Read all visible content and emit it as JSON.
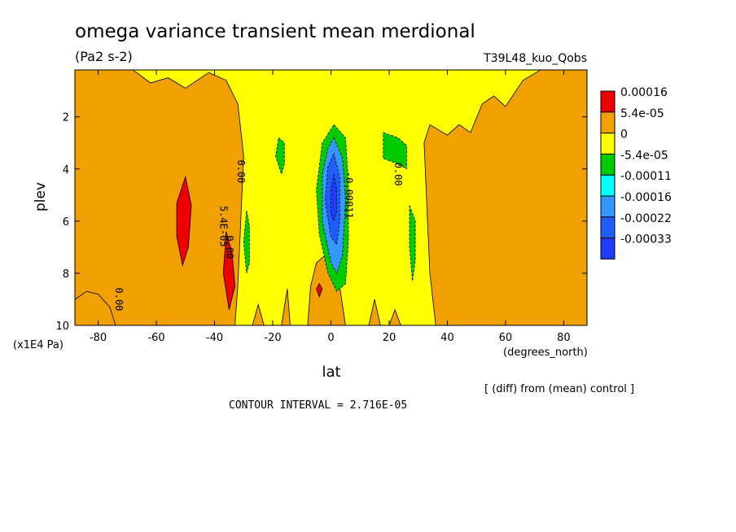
{
  "chart_data": {
    "type": "heatmap",
    "title": "omega variance transient mean merdional",
    "units": "(Pa2 s-2)",
    "run_label": "T39L48_kuo_Qobs",
    "xlabel": "lat",
    "x_units": "(degrees_north)",
    "ylabel": "plev",
    "y_units": "(x1E4 Pa)",
    "xlim": [
      -88,
      88
    ],
    "ylim": [
      0.2,
      10
    ],
    "y_inverted": true,
    "x_ticks": [
      -80,
      -60,
      -40,
      -20,
      0,
      20,
      40,
      60,
      80
    ],
    "x_tick_labels": [
      "-80",
      "-60",
      "-40",
      "-20",
      "0",
      "20",
      "40",
      "60",
      "80"
    ],
    "y_ticks": [
      2,
      4,
      6,
      8,
      10
    ],
    "y_tick_labels": [
      "2",
      "4",
      "6",
      "8",
      "10"
    ],
    "legend": {
      "placement": "right",
      "levels": [
        "0.00016",
        "5.4e-05",
        "0",
        "-5.4e-05",
        "-0.00011",
        "-0.00016",
        "-0.00022",
        "-0.00033"
      ],
      "colors": [
        "#ee0000",
        "#f0a000",
        "#ffff00",
        "#00cc00",
        "#00ffff",
        "#3399ff",
        "#1e5eff",
        "#1e3cff"
      ]
    },
    "contour_labels": [
      "0.00",
      "5.4E-05",
      "0.00",
      "0.00",
      "0.00",
      "-0.00011"
    ],
    "note": "[ (diff) from (mean) control ]",
    "contour_interval_label": "CONTOUR INTERVAL = 2.716E-05",
    "regions": [
      {
        "name": "positive-sh-upper",
        "level": "5.4e-05",
        "points": [
          [
            -88,
            0.2
          ],
          [
            -68,
            0.2
          ],
          [
            -62,
            0.7
          ],
          [
            -56,
            0.5
          ],
          [
            -50,
            0.9
          ],
          [
            -42,
            0.3
          ],
          [
            -36,
            0.6
          ],
          [
            -32,
            1.5
          ],
          [
            -30,
            3.5
          ],
          [
            -31,
            6.0
          ],
          [
            -32,
            8.5
          ],
          [
            -33,
            10
          ],
          [
            -88,
            10
          ]
        ]
      },
      {
        "name": "positive-sh-left-bottom",
        "level": "5.4e-05",
        "points": [
          [
            -88,
            9.0
          ],
          [
            -84,
            8.7
          ],
          [
            -80,
            8.8
          ],
          [
            -76,
            9.3
          ],
          [
            -74,
            10
          ],
          [
            -88,
            10
          ]
        ]
      },
      {
        "name": "positive-nh",
        "level": "5.4e-05",
        "points": [
          [
            88,
            0.2
          ],
          [
            88,
            10
          ],
          [
            36,
            10
          ],
          [
            34,
            8.0
          ],
          [
            33,
            5.5
          ],
          [
            32,
            3.0
          ],
          [
            34,
            2.3
          ],
          [
            40,
            2.7
          ],
          [
            44,
            2.3
          ],
          [
            48,
            2.6
          ],
          [
            52,
            1.5
          ],
          [
            56,
            1.2
          ],
          [
            60,
            1.6
          ],
          [
            66,
            0.6
          ],
          [
            72,
            0.2
          ]
        ]
      },
      {
        "name": "positive-central-dome",
        "level": "5.4e-05",
        "points": [
          [
            -8,
            10
          ],
          [
            -7,
            8.5
          ],
          [
            -5,
            7.6
          ],
          [
            -2,
            7.3
          ],
          [
            1,
            7.6
          ],
          [
            3,
            8.5
          ],
          [
            5,
            10
          ]
        ]
      },
      {
        "name": "positive-sh-spike1",
        "level": "5.4e-05",
        "points": [
          [
            -17,
            10
          ],
          [
            -15,
            8.6
          ],
          [
            -14,
            10
          ]
        ]
      },
      {
        "name": "positive-sh-spike2",
        "level": "5.4e-05",
        "points": [
          [
            -27,
            10
          ],
          [
            -25,
            9.2
          ],
          [
            -23,
            10
          ]
        ]
      },
      {
        "name": "positive-nh-spike",
        "level": "5.4e-05",
        "points": [
          [
            13,
            10
          ],
          [
            15,
            9.0
          ],
          [
            17,
            10
          ]
        ]
      },
      {
        "name": "positive-nh-spike2",
        "level": "5.4e-05",
        "points": [
          [
            20,
            10
          ],
          [
            22,
            9.4
          ],
          [
            24,
            10
          ]
        ]
      },
      {
        "name": "red-left",
        "level": "0.00016",
        "points": [
          [
            -50,
            4.3
          ],
          [
            -48,
            5.4
          ],
          [
            -49,
            7.0
          ],
          [
            -51,
            7.7
          ],
          [
            -53,
            6.6
          ],
          [
            -53,
            5.3
          ]
        ]
      },
      {
        "name": "red-center-left",
        "level": "0.00016",
        "points": [
          [
            -36,
            6.4
          ],
          [
            -34,
            7.2
          ],
          [
            -33,
            8.5
          ],
          [
            -35,
            9.4
          ],
          [
            -37,
            8.0
          ]
        ]
      },
      {
        "name": "red-speck",
        "level": "0.00016",
        "points": [
          [
            -4,
            8.4
          ],
          [
            -3,
            8.6
          ],
          [
            -4,
            8.9
          ],
          [
            -5,
            8.6
          ]
        ]
      },
      {
        "name": "green-left-upper",
        "level": "-5.4e-05",
        "points": [
          [
            -18,
            2.8
          ],
          [
            -16,
            3.0
          ],
          [
            -16,
            3.8
          ],
          [
            -17,
            4.2
          ],
          [
            -19,
            3.5
          ]
        ]
      },
      {
        "name": "green-left-mid",
        "level": "-5.4e-05",
        "points": [
          [
            -29,
            5.6
          ],
          [
            -28,
            6.2
          ],
          [
            -28,
            7.6
          ],
          [
            -29,
            8.0
          ],
          [
            -30,
            6.8
          ]
        ]
      },
      {
        "name": "green-right-upper",
        "level": "-5.4e-05",
        "points": [
          [
            18,
            2.6
          ],
          [
            23,
            2.8
          ],
          [
            26,
            3.1
          ],
          [
            26,
            4.0
          ],
          [
            23,
            3.8
          ],
          [
            18,
            3.6
          ]
        ]
      },
      {
        "name": "green-right-mid",
        "level": "-5.4e-05",
        "points": [
          [
            27,
            5.4
          ],
          [
            29,
            6.0
          ],
          [
            29,
            7.5
          ],
          [
            28,
            8.3
          ],
          [
            27,
            7.0
          ]
        ]
      },
      {
        "name": "green-central",
        "level": "-5.4e-05",
        "points": [
          [
            1,
            2.3
          ],
          [
            5,
            2.8
          ],
          [
            6,
            4.5
          ],
          [
            6,
            6.8
          ],
          [
            5,
            8.4
          ],
          [
            2,
            8.7
          ],
          [
            -1,
            8.0
          ],
          [
            -4,
            6.5
          ],
          [
            -5,
            4.8
          ],
          [
            -3,
            3.0
          ]
        ]
      },
      {
        "name": "cyan-central",
        "level": "-0.00016",
        "points": [
          [
            1,
            2.8
          ],
          [
            4,
            3.6
          ],
          [
            5,
            5.2
          ],
          [
            4,
            7.3
          ],
          [
            2,
            8.0
          ],
          [
            0,
            7.6
          ],
          [
            -3,
            6.0
          ],
          [
            -3,
            4.2
          ],
          [
            -1,
            3.2
          ]
        ]
      },
      {
        "name": "blue-central",
        "level": "-0.00022",
        "points": [
          [
            1,
            3.4
          ],
          [
            3,
            4.3
          ],
          [
            3,
            6.0
          ],
          [
            2,
            6.9
          ],
          [
            0,
            6.6
          ],
          [
            -2,
            5.2
          ],
          [
            -1,
            3.9
          ]
        ]
      },
      {
        "name": "darkblue-central",
        "level": "-0.00033",
        "points": [
          [
            1,
            4.2
          ],
          [
            2,
            4.8
          ],
          [
            2,
            5.6
          ],
          [
            1,
            6.0
          ],
          [
            0,
            5.7
          ],
          [
            0,
            4.8
          ]
        ]
      }
    ]
  }
}
